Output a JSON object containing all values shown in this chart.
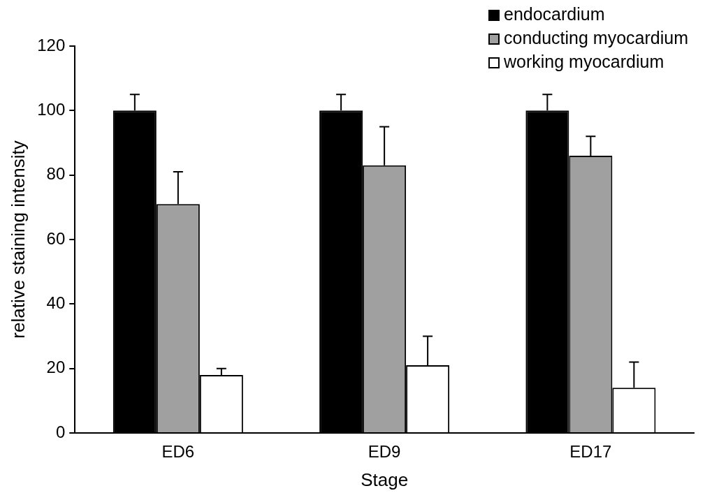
{
  "chart_data": {
    "type": "bar",
    "xlabel": "Stage",
    "ylabel": "relative staining intensity",
    "categories": [
      "ED6",
      "ED9",
      "ED17"
    ],
    "series": [
      {
        "name": "endocardium",
        "color": "#000000",
        "values": [
          100,
          100,
          100
        ],
        "errors": [
          5,
          5,
          5
        ]
      },
      {
        "name": "conducting myocardium",
        "color": "#a0a0a0",
        "values": [
          71,
          83,
          86
        ],
        "errors": [
          10,
          12,
          6
        ]
      },
      {
        "name": "working myocardium",
        "color": "#ffffff",
        "values": [
          18,
          21,
          14
        ],
        "errors": [
          2,
          9,
          8
        ]
      }
    ],
    "ylim": [
      0,
      120
    ],
    "yticks": [
      0,
      20,
      40,
      60,
      80,
      100,
      120
    ],
    "grid": false,
    "legend": "top right"
  }
}
